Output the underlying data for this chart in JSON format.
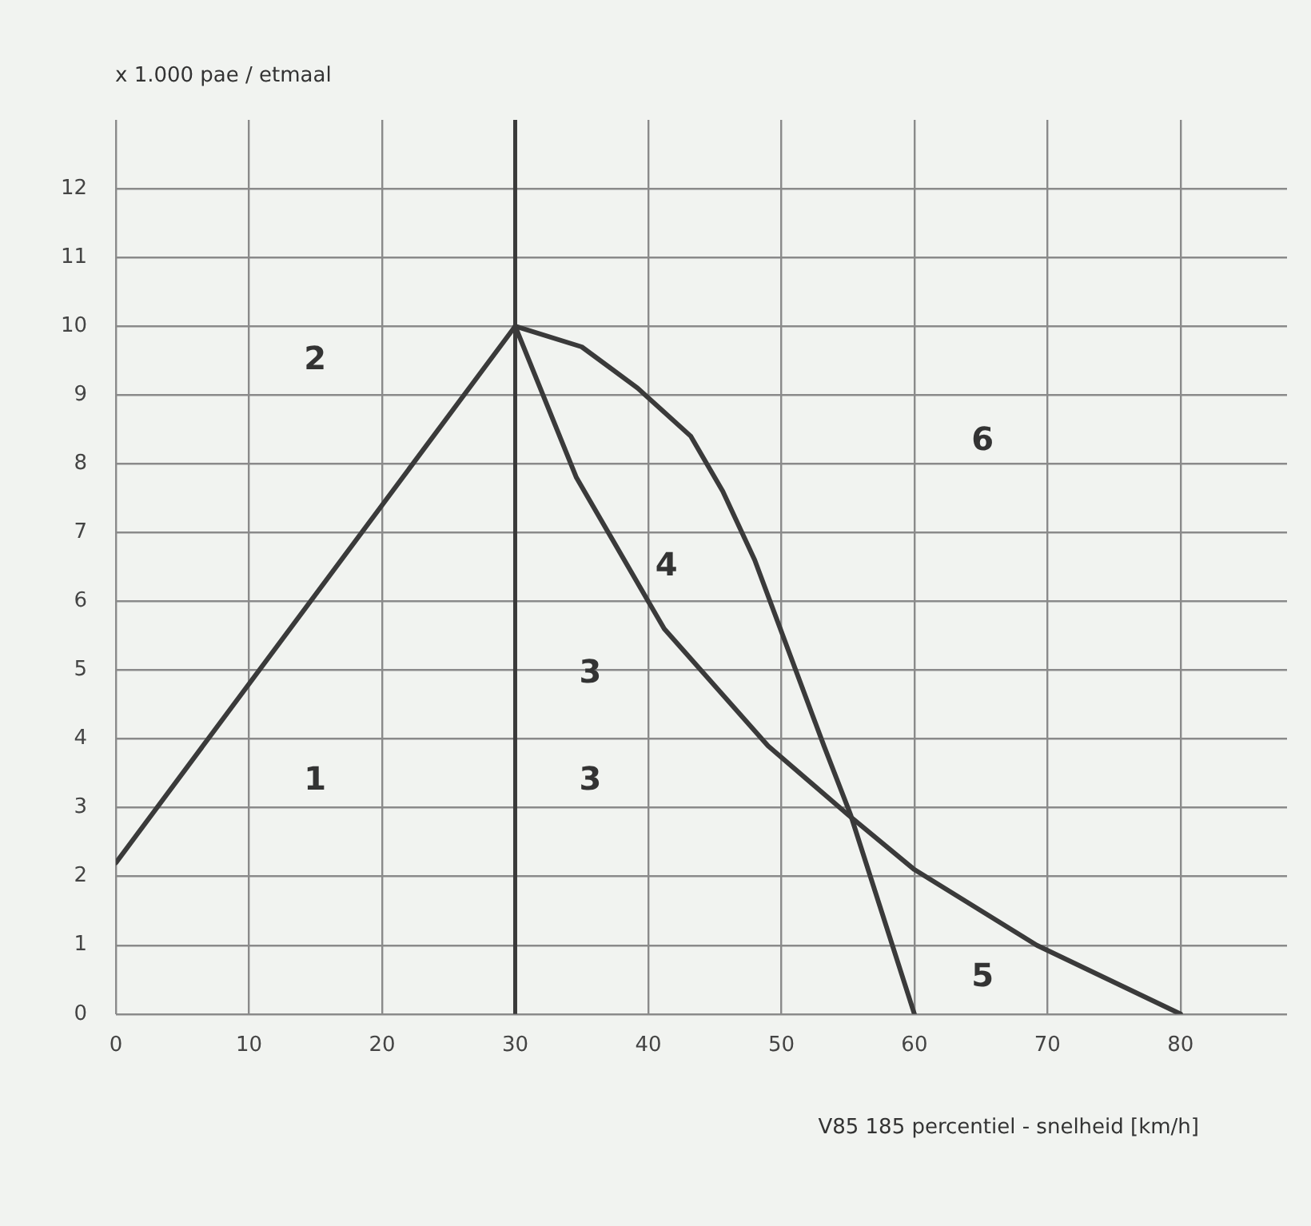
{
  "chart_data": {
    "type": "line",
    "ylabel": "x 1.000 pae / etmaal",
    "xlabel": "V85 185 percentiel - snelheid [km/h]",
    "xlim": [
      0,
      88
    ],
    "xticks": [
      0,
      10,
      20,
      30,
      40,
      50,
      60,
      70,
      80
    ],
    "ylim": [
      0,
      13
    ],
    "yticks": [
      0,
      1,
      2,
      3,
      4,
      5,
      6,
      7,
      8,
      9,
      10,
      11,
      12
    ],
    "grid": true,
    "legend": false,
    "marker": "none",
    "line_style": "solid",
    "series": [
      {
        "color": "#3a3a3a",
        "x": [
          0,
          30
        ],
        "values": [
          2.2,
          10
        ]
      },
      {
        "color": "#3a3a3a",
        "x": [
          30,
          34.6,
          41.2,
          49,
          55,
          60,
          69.2,
          80
        ],
        "values": [
          10,
          7.8,
          5.6,
          3.9,
          2.9,
          2.1,
          1,
          0
        ]
      },
      {
        "color": "#3a3a3a",
        "x": [
          30,
          35,
          39.2,
          43.2,
          45.6,
          48,
          53.2,
          55.2,
          60
        ],
        "values": [
          10,
          9.7,
          9.1,
          8.4,
          7.6,
          6.6,
          3.9,
          2.9,
          0
        ]
      }
    ],
    "ref_lines": [
      {
        "axis": "x",
        "value": 30,
        "color": "#3a3a3a"
      }
    ],
    "annotations": [
      "1",
      "2",
      "3",
      "3",
      "4",
      "5",
      "6"
    ]
  }
}
